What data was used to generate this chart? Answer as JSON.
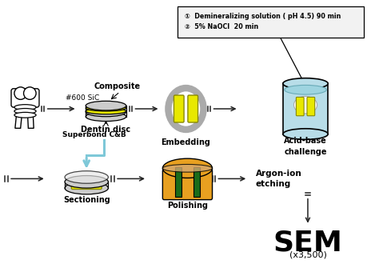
{
  "bg_color": "#ffffff",
  "box_text_line1": "①  Demineralizing solution ( pH 4.5) 90 min",
  "box_text_line2": "②  5% NaOCl  20 min",
  "labels": {
    "composite": "Composite",
    "sic": "#600 SiC",
    "dentin": "Dentin disc",
    "embedding": "Embedding",
    "acid_base": "Acid-base\nchallenge",
    "superbond": "Superbond C&B",
    "sectioning": "Sectioning",
    "polishing": "Polishing",
    "argon": "Argon-ion\netching",
    "sem": "SEM",
    "sem_mag": "(x3,500)"
  },
  "colors": {
    "yellow": "#e8e800",
    "green_dark": "#1a6b1a",
    "gray_light": "#cccccc",
    "gray_mid": "#aaaaaa",
    "light_blue": "#b8dde8",
    "cyan_arrow": "#7ec8d8",
    "orange": "#e8a020",
    "black": "#111111",
    "white": "#ffffff",
    "box_bg": "#f2f2f2",
    "tan": "#d4a870"
  }
}
